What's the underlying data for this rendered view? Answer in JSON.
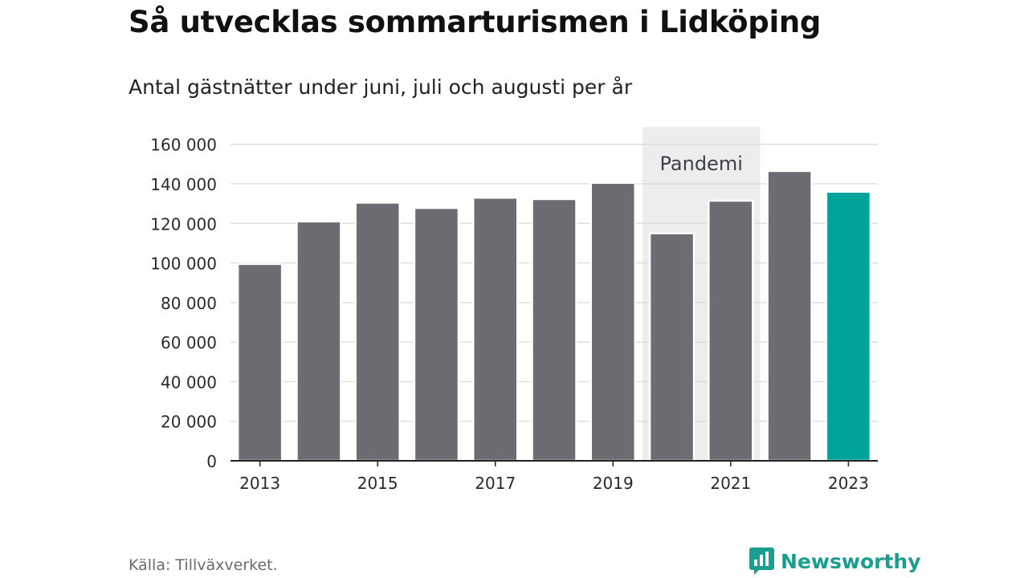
{
  "chart_data": {
    "type": "bar",
    "title": "Så utvecklas sommarturismen i Lidköping",
    "subtitle": "Antal gästnätter under juni, juli och augusti per år",
    "categories": [
      "2013",
      "2014",
      "2015",
      "2016",
      "2017",
      "2018",
      "2019",
      "2020",
      "2021",
      "2022",
      "2023"
    ],
    "values": [
      99500,
      121000,
      130500,
      127800,
      133000,
      132300,
      140500,
      115000,
      131500,
      146500,
      136000
    ],
    "x_tick_labels": [
      "2013",
      "2015",
      "2017",
      "2019",
      "2021",
      "2023"
    ],
    "y_ticks": [
      0,
      20000,
      40000,
      60000,
      80000,
      100000,
      120000,
      140000,
      160000
    ],
    "y_tick_labels": [
      "0",
      "20 000",
      "40 000",
      "60 000",
      "80 000",
      "100 000",
      "120 000",
      "140 000",
      "160 000"
    ],
    "ylim": [
      0,
      168000
    ],
    "grid": true,
    "bar_color": "#6d6c72",
    "highlight": {
      "category": "2023",
      "color": "#00a39a"
    },
    "annotation": {
      "label": "Pandemi",
      "from": "2020",
      "to": "2021",
      "color": "#ededed"
    }
  },
  "footer": {
    "source": "Källa: Tillväxverket.",
    "brand": "Newsworthy",
    "brand_icon": "bar-chart-speech-bubble-icon",
    "brand_color": "#1a9e8f"
  }
}
